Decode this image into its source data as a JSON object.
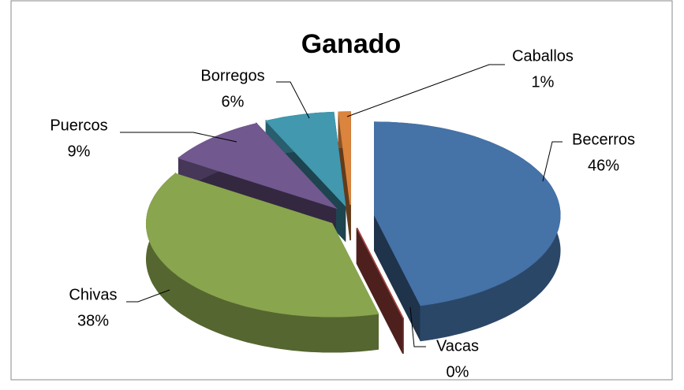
{
  "chart_data": {
    "type": "pie3d",
    "title": "Ganado",
    "categories": [
      "Becerros",
      "Vacas",
      "Chivas",
      "Puercos",
      "Borregos",
      "Caballos"
    ],
    "values": [
      46,
      0,
      38,
      9,
      6,
      1
    ],
    "value_labels": [
      "46%",
      "0%",
      "38%",
      "9%",
      "6%",
      "1%"
    ],
    "colors": [
      "#4572a7",
      "#aa4643",
      "#89a54e",
      "#71588f",
      "#4198af",
      "#db843d"
    ]
  }
}
